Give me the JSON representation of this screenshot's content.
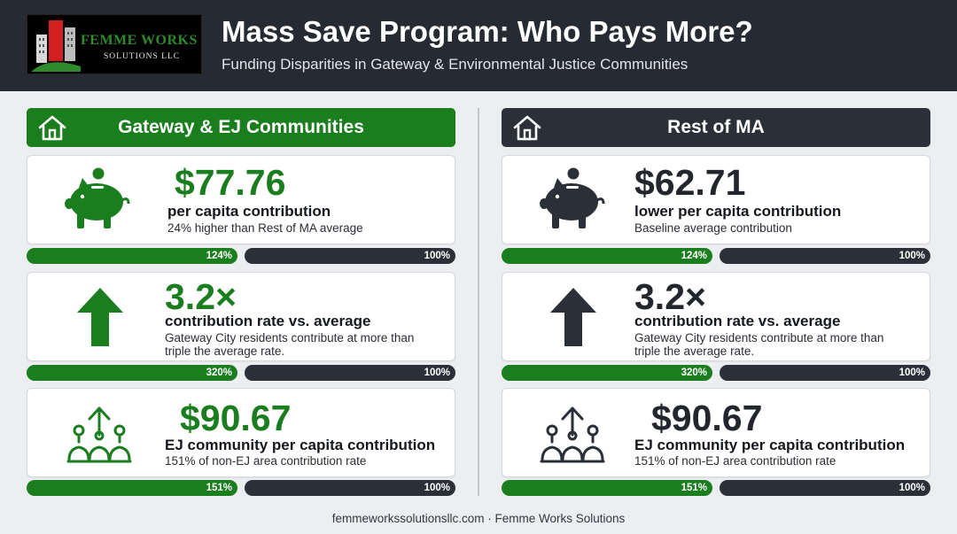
{
  "header": {
    "title": "Mass Save Program: Who Pays More?",
    "subtitle": "Funding Disparities in Gateway & Environmental Justice Communities",
    "logo": {
      "name": "FEMME WORKS",
      "sub": "SOLUTIONS LLC"
    }
  },
  "colors": {
    "green": "#1a7d1e",
    "dark": "#2b2f37",
    "header_bg": "#262a33"
  },
  "left": {
    "heading": "Gateway & EJ Communities",
    "heading_icon": "home-icon",
    "cards": [
      {
        "icon": "piggy-bank-icon",
        "value": "$77.76",
        "label": "per capita contribution",
        "desc": "24% higher than Rest of MA average",
        "bar_a": "124%",
        "bar_b": "100%"
      },
      {
        "icon": "arrow-up-icon",
        "value": "3.2×",
        "label": "contribution rate vs. average",
        "desc": "Gateway City residents contribute at more than triple the average rate.",
        "bar_a": "320%",
        "bar_b": "100%"
      },
      {
        "icon": "community-icon",
        "value": "$90.67",
        "label": "EJ community per capita contribution",
        "desc": "151% of non-EJ area contribution rate",
        "bar_a": "151%",
        "bar_b": "100%"
      }
    ]
  },
  "right": {
    "heading": "Rest of MA",
    "heading_icon": "home-icon",
    "cards": [
      {
        "icon": "piggy-bank-icon",
        "value": "$62.71",
        "label": "lower per capita contribution",
        "desc": "Baseline average contribution",
        "bar_a": "124%",
        "bar_b": "100%"
      },
      {
        "icon": "arrow-up-icon",
        "value": "3.2×",
        "label": "contribution rate vs. average",
        "desc": "Gateway City residents contribute at more than triple the average rate.",
        "bar_a": "320%",
        "bar_b": "100%"
      },
      {
        "icon": "community-icon",
        "value": "$90.67",
        "label": "EJ community per capita contribution",
        "desc": "151% of non-EJ area contribution rate",
        "bar_a": "151%",
        "bar_b": "100%"
      }
    ]
  },
  "footer": {
    "text": "femmeworkssolutionsllc.com · Femme Works Solutions"
  }
}
